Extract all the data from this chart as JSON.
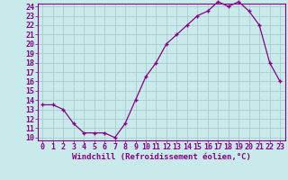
{
  "x": [
    0,
    1,
    2,
    3,
    4,
    5,
    6,
    7,
    8,
    9,
    10,
    11,
    12,
    13,
    14,
    15,
    16,
    17,
    18,
    19,
    20,
    21,
    22,
    23
  ],
  "y": [
    13.5,
    13.5,
    13.0,
    11.5,
    10.5,
    10.5,
    10.5,
    10.0,
    11.5,
    14.0,
    16.5,
    18.0,
    20.0,
    21.0,
    22.0,
    23.0,
    23.5,
    24.5,
    24.0,
    24.5,
    23.5,
    22.0,
    18.0,
    16.0
  ],
  "xlabel": "Windchill (Refroidissement éolien,°C)",
  "ylim_min": 10,
  "ylim_max": 24,
  "xlim_min": 0,
  "xlim_max": 23,
  "line_color": "#880088",
  "marker": "+",
  "bg_color": "#c8eaea",
  "grid_color": "#aacccc",
  "yticks": [
    10,
    11,
    12,
    13,
    14,
    15,
    16,
    17,
    18,
    19,
    20,
    21,
    22,
    23,
    24
  ],
  "xticks": [
    0,
    1,
    2,
    3,
    4,
    5,
    6,
    7,
    8,
    9,
    10,
    11,
    12,
    13,
    14,
    15,
    16,
    17,
    18,
    19,
    20,
    21,
    22,
    23
  ],
  "tick_fontsize": 6,
  "xlabel_fontsize": 6.5
}
